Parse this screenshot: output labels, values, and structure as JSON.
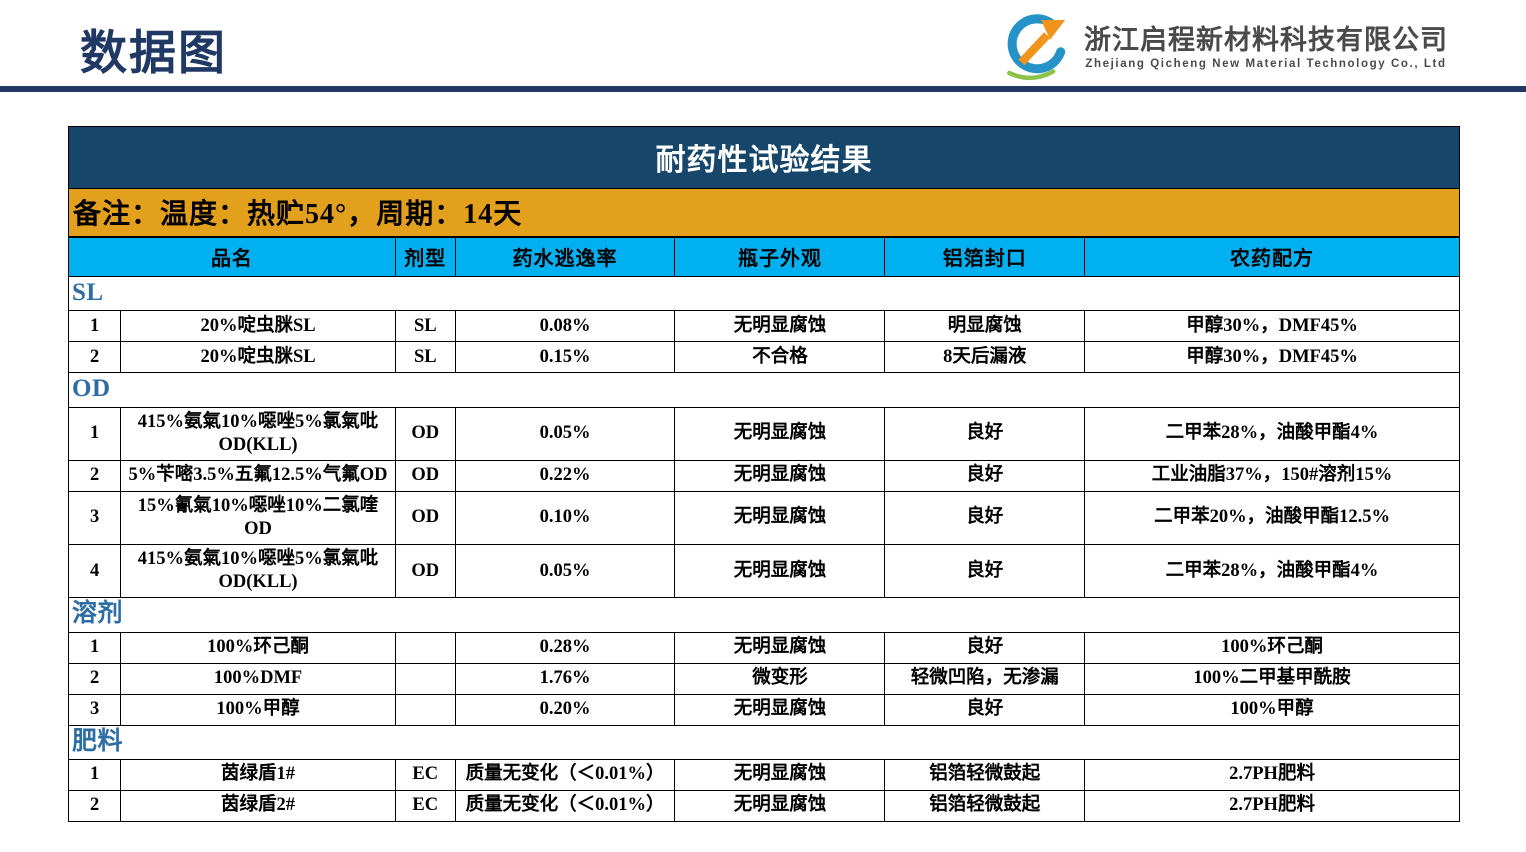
{
  "page": {
    "title": "数据图"
  },
  "logo": {
    "company_cn": "浙江启程新材料科技有限公司",
    "company_en": "Zhejiang Qicheng New Material Technology Co., Ltd"
  },
  "report": {
    "title": "耐药性试验结果",
    "note": "备注：温度：热贮54°，周期：14天"
  },
  "table": {
    "headers": [
      "品名",
      "剂型",
      "药水逃逸率",
      "瓶子外观",
      "铝箔封口",
      "农药配方"
    ],
    "sections": [
      {
        "label": "SL",
        "rows": [
          {
            "no": "1",
            "name": "20%啶虫脒SL",
            "type": "SL",
            "escape": "0.08%",
            "bottle": "无明显腐蚀",
            "foil": "明显腐蚀",
            "formula": "甲醇30%，DMF45%"
          },
          {
            "no": "2",
            "name": "20%啶虫脒SL",
            "type": "SL",
            "escape": "0.15%",
            "bottle": "不合格",
            "foil": "8天后漏液",
            "formula": "甲醇30%，DMF45%"
          }
        ]
      },
      {
        "label": "OD",
        "rows": [
          {
            "no": "1",
            "name": "415%氨氣10%噁唑5%氯氣吡OD(KLL)",
            "type": "OD",
            "escape": "0.05%",
            "bottle": "无明显腐蚀",
            "foil": "良好",
            "formula": "二甲苯28%，油酸甲酯4%"
          },
          {
            "no": "2",
            "name": "5%苄嘧3.5%五氟12.5%气氟OD",
            "type": "OD",
            "escape": "0.22%",
            "bottle": "无明显腐蚀",
            "foil": "良好",
            "formula": "工业油脂37%，150#溶剂15%"
          },
          {
            "no": "3",
            "name": "15%氰氣10%噁唑10%二氯喹OD",
            "type": "OD",
            "escape": "0.10%",
            "bottle": "无明显腐蚀",
            "foil": "良好",
            "formula": "二甲苯20%，油酸甲酯12.5%"
          },
          {
            "no": "4",
            "name": "415%氨氣10%噁唑5%氯氣吡OD(KLL)",
            "type": "OD",
            "escape": "0.05%",
            "bottle": "无明显腐蚀",
            "foil": "良好",
            "formula": "二甲苯28%，油酸甲酯4%"
          }
        ]
      },
      {
        "label": "溶剂",
        "rows": [
          {
            "no": "1",
            "name": "100%环己酮",
            "type": "",
            "escape": "0.28%",
            "bottle": "无明显腐蚀",
            "foil": "良好",
            "formula": "100%环己酮"
          },
          {
            "no": "2",
            "name": "100%DMF",
            "type": "",
            "escape": "1.76%",
            "bottle": "微变形",
            "foil": "轻微凹陷，无渗漏",
            "formula": "100%二甲基甲酰胺"
          },
          {
            "no": "3",
            "name": "100%甲醇",
            "type": "",
            "escape": "0.20%",
            "bottle": "无明显腐蚀",
            "foil": "良好",
            "formula": "100%甲醇"
          }
        ]
      },
      {
        "label": "肥料",
        "rows": [
          {
            "no": "1",
            "name": "茵绿盾1#",
            "type": "EC",
            "escape": "质量无变化（＜0.01%）",
            "bottle": "无明显腐蚀",
            "foil": "铝箔轻微鼓起",
            "formula": "2.7PH肥料"
          },
          {
            "no": "2",
            "name": "茵绿盾2#",
            "type": "EC",
            "escape": "质量无变化（＜0.01%）",
            "bottle": "无明显腐蚀",
            "foil": "铝箔轻微鼓起",
            "formula": "2.7PH肥料"
          }
        ]
      }
    ]
  },
  "colors": {
    "navy": "#1F3864",
    "banner": "#17466B",
    "orange": "#E3A01D",
    "cyan": "#00B0F0",
    "sectionblue": "#2E6DA4"
  }
}
